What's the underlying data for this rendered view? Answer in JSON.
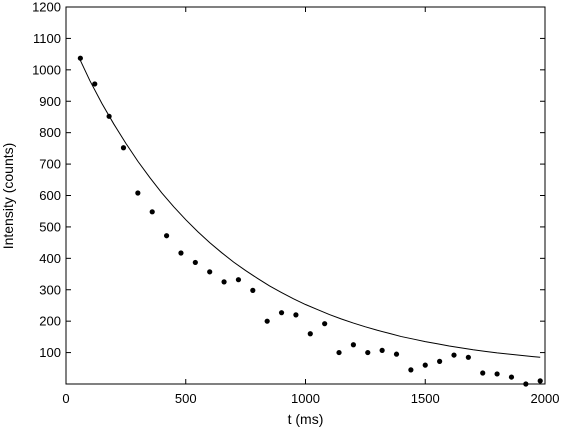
{
  "chart_data": {
    "type": "scatter",
    "title": "",
    "xlabel": "t (ms)",
    "ylabel": "Intensity (counts)",
    "xlim": [
      0,
      2000
    ],
    "ylim": [
      0,
      1200
    ],
    "grid": false,
    "x_ticks": [
      0,
      500,
      1000,
      1500,
      2000
    ],
    "y_ticks": [
      100,
      200,
      300,
      400,
      500,
      600,
      700,
      800,
      900,
      1000,
      1100,
      1200
    ],
    "series": [
      {
        "kind": "points",
        "color": "#000000",
        "points": [
          [
            60,
            1037
          ],
          [
            120,
            955
          ],
          [
            180,
            852
          ],
          [
            240,
            752
          ],
          [
            300,
            608
          ],
          [
            360,
            548
          ],
          [
            420,
            472
          ],
          [
            480,
            417
          ],
          [
            540,
            387
          ],
          [
            600,
            357
          ],
          [
            660,
            325
          ],
          [
            720,
            332
          ],
          [
            780,
            298
          ],
          [
            840,
            200
          ],
          [
            900,
            227
          ],
          [
            960,
            220
          ],
          [
            1020,
            160
          ],
          [
            1080,
            192
          ],
          [
            1140,
            100
          ],
          [
            1200,
            125
          ],
          [
            1260,
            100
          ],
          [
            1320,
            107
          ],
          [
            1380,
            95
          ],
          [
            1440,
            45
          ],
          [
            1500,
            60
          ],
          [
            1560,
            72
          ],
          [
            1620,
            92
          ],
          [
            1680,
            85
          ],
          [
            1740,
            35
          ],
          [
            1800,
            32
          ],
          [
            1860,
            22
          ],
          [
            1920,
            0
          ],
          [
            1980,
            10
          ]
        ]
      },
      {
        "kind": "fit-curve",
        "color": "#000000",
        "x": [
          60,
          100,
          150,
          200,
          250,
          300,
          350,
          400,
          450,
          500,
          550,
          600,
          650,
          700,
          750,
          800,
          850,
          900,
          950,
          1000,
          1050,
          1100,
          1150,
          1200,
          1250,
          1300,
          1350,
          1400,
          1450,
          1500,
          1550,
          1600,
          1650,
          1700,
          1750,
          1800,
          1850,
          1900,
          1950,
          1980
        ],
        "y": [
          1030,
          965,
          893,
          827,
          766,
          709,
          657,
          608,
          564,
          523,
          485,
          450,
          418,
          388,
          361,
          336,
          312,
          291,
          271,
          253,
          237,
          221,
          207,
          194,
          182,
          171,
          161,
          151,
          143,
          135,
          128,
          121,
          115,
          109,
          104,
          99,
          95,
          91,
          87,
          85
        ]
      }
    ]
  }
}
